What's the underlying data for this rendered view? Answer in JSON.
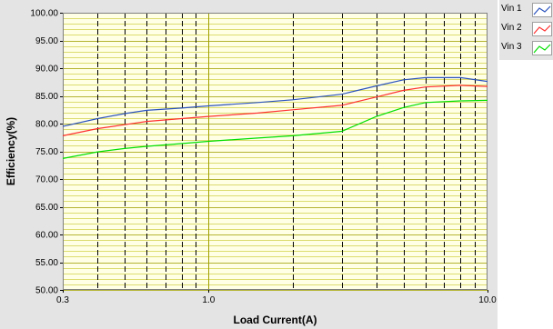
{
  "chart_data": {
    "type": "line",
    "title": "",
    "xlabel": "Load Current(A)",
    "ylabel": "Efficiency(%)",
    "x_scale": "log",
    "xlim": [
      0.3,
      10.0
    ],
    "ylim": [
      50.0,
      100.0
    ],
    "x_tick_labels": [
      "0.3",
      "1.0",
      "10.0"
    ],
    "x_ticks": [
      0.3,
      1.0,
      10.0
    ],
    "y_ticks": [
      50,
      55,
      60,
      65,
      70,
      75,
      80,
      85,
      90,
      95,
      100
    ],
    "y_tick_labels": [
      "50.00",
      "55.00",
      "60.00",
      "65.00",
      "70.00",
      "75.00",
      "80.00",
      "85.00",
      "90.00",
      "95.00",
      "100.00"
    ],
    "grid": true,
    "legend_position": "top-right, outside plot",
    "colors": {
      "plot_background": "#ffffe6",
      "minor_grid": "#dcdc6e",
      "major_grid": "#b4b432",
      "decade_line": "#a0a000",
      "dashed_line": "#000000",
      "panel": "#e4e4e4"
    },
    "series": [
      {
        "name": "Vin 1",
        "color": "#2a52be",
        "x": [
          0.3,
          0.4,
          0.5,
          0.6,
          0.8,
          1.0,
          1.5,
          2.0,
          3.0,
          4.0,
          5.0,
          6.0,
          8.0,
          10.0
        ],
        "y": [
          79.5,
          80.9,
          81.8,
          82.4,
          82.8,
          83.2,
          83.8,
          84.3,
          85.3,
          86.8,
          87.9,
          88.3,
          88.3,
          87.6
        ]
      },
      {
        "name": "Vin 2",
        "color": "#ff3030",
        "x": [
          0.3,
          0.4,
          0.5,
          0.6,
          0.8,
          1.0,
          1.5,
          2.0,
          3.0,
          4.0,
          5.0,
          6.0,
          8.0,
          10.0
        ],
        "y": [
          77.8,
          79.1,
          79.8,
          80.4,
          80.9,
          81.3,
          81.9,
          82.5,
          83.3,
          84.8,
          86.0,
          86.6,
          86.9,
          86.7
        ]
      },
      {
        "name": "Vin 3",
        "color": "#00e000",
        "x": [
          0.3,
          0.4,
          0.5,
          0.6,
          0.8,
          1.0,
          1.5,
          2.0,
          3.0,
          4.0,
          5.0,
          6.0,
          8.0,
          10.0
        ],
        "y": [
          73.7,
          74.9,
          75.5,
          75.9,
          76.4,
          76.8,
          77.4,
          77.8,
          78.6,
          81.3,
          82.9,
          83.8,
          84.1,
          84.2
        ]
      }
    ]
  }
}
